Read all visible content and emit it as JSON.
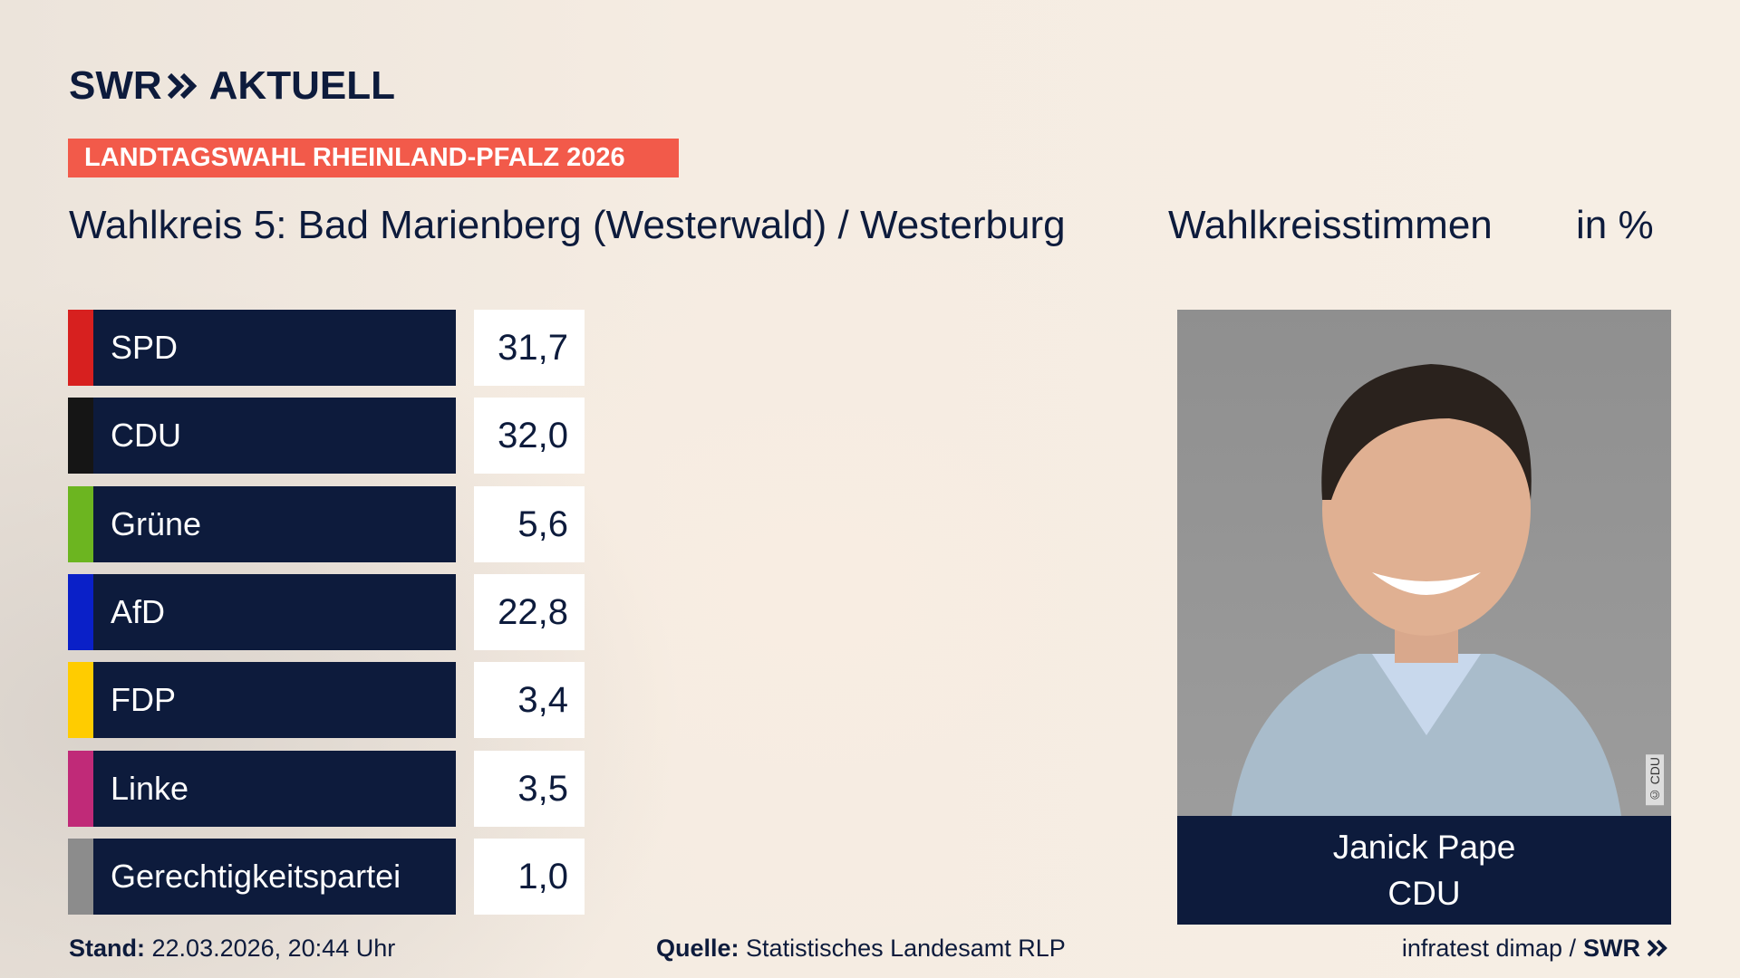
{
  "header": {
    "brand": "SWR",
    "brand_suffix": "AKTUELL",
    "badge": "LANDTAGSWAHL RHEINLAND-PFALZ 2026",
    "title": "Wahlkreis 5: Bad Marienberg (Westerwald) / Westerburg",
    "measure": "Wahlkreisstimmen",
    "unit": "in %"
  },
  "table": {
    "rows": [
      {
        "party": "SPD",
        "color": "#d7201f",
        "value": "31,7"
      },
      {
        "party": "CDU",
        "color": "#151515",
        "value": "32,0"
      },
      {
        "party": "Grüne",
        "color": "#6cb520",
        "value": "5,6"
      },
      {
        "party": "AfD",
        "color": "#0a20c8",
        "value": "22,8"
      },
      {
        "party": "FDP",
        "color": "#ffcc00",
        "value": "3,4"
      },
      {
        "party": "Linke",
        "color": "#c02a78",
        "value": "3,5"
      },
      {
        "party": "Gerechtigkeitspartei",
        "color": "#8c8c8c",
        "value": "1,0"
      }
    ]
  },
  "candidate": {
    "name": "Janick Pape",
    "party": "CDU",
    "photo_credit": "© CDU"
  },
  "footer": {
    "stand_label": "Stand:",
    "stand": "22.03.2026, 20:44 Uhr",
    "source_label": "Quelle:",
    "source": "Statistisches Landesamt RLP",
    "credit": "infratest dimap /",
    "credit_brand": "SWR"
  }
}
